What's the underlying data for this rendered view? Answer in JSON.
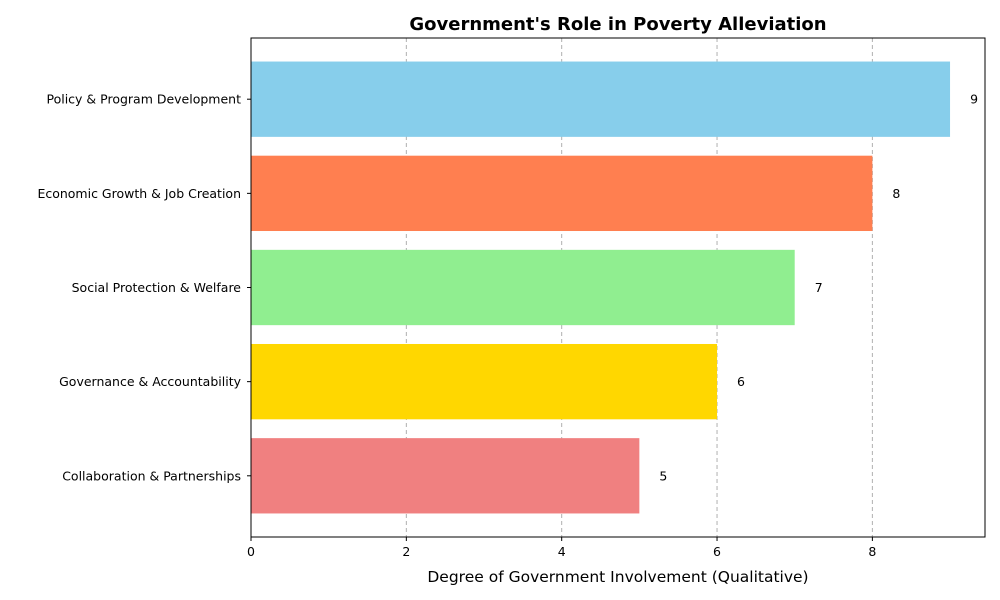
{
  "chart_data": {
    "type": "bar",
    "orientation": "horizontal",
    "title": "Government's Role in Poverty Alleviation",
    "xlabel": "Degree of Government Involvement (Qualitative)",
    "ylabel": "",
    "categories": [
      "Policy & Program Development",
      "Economic Growth & Job Creation",
      "Social Protection & Welfare",
      "Governance & Accountability",
      "Collaboration & Partnerships"
    ],
    "values": [
      9,
      8,
      7,
      6,
      5
    ],
    "colors": [
      "#87CEEB",
      "#FF7F50",
      "#90EE90",
      "#FFD700",
      "#F08080"
    ],
    "xlim": [
      0,
      9.45
    ],
    "xticks": [
      0,
      2,
      4,
      6,
      8
    ],
    "grid": "x dashed",
    "legend": "none"
  }
}
